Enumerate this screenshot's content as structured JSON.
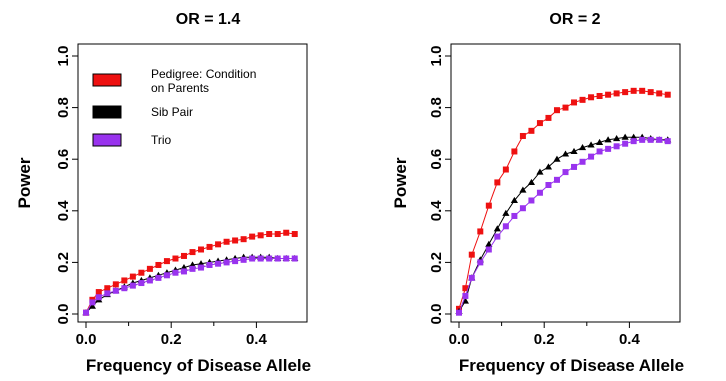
{
  "chart_data": [
    {
      "type": "line",
      "title": "OR = 1.4",
      "xlabel": "Frequency of Disease Allele",
      "ylabel": "Power",
      "xlim": [
        0,
        0.5
      ],
      "ylim": [
        0,
        1.0
      ],
      "xticks": [
        "0.0",
        "0.2",
        "0.4"
      ],
      "yticks": [
        "0.0",
        "0.2",
        "0.4",
        "0.6",
        "0.8",
        "1.0"
      ],
      "grid": false,
      "legend": {
        "placement": "top-left",
        "entries": [
          "Pedigree: Condition on Parents",
          "Sib Pair",
          "Trio"
        ]
      },
      "series": [
        {
          "name": "Pedigree: Condition on Parents",
          "color": "#ee1111",
          "marker": "square",
          "x": [
            0.0,
            0.015,
            0.03,
            0.05,
            0.07,
            0.09,
            0.11,
            0.13,
            0.15,
            0.17,
            0.19,
            0.21,
            0.23,
            0.25,
            0.27,
            0.29,
            0.31,
            0.33,
            0.35,
            0.37,
            0.39,
            0.41,
            0.43,
            0.45,
            0.47,
            0.49
          ],
          "values": [
            0.005,
            0.055,
            0.085,
            0.1,
            0.115,
            0.13,
            0.145,
            0.16,
            0.175,
            0.19,
            0.205,
            0.215,
            0.225,
            0.24,
            0.25,
            0.26,
            0.27,
            0.28,
            0.285,
            0.29,
            0.3,
            0.305,
            0.31,
            0.31,
            0.315,
            0.31
          ]
        },
        {
          "name": "Sib Pair",
          "color": "#000000",
          "marker": "triangle",
          "x": [
            0.0,
            0.015,
            0.03,
            0.05,
            0.07,
            0.09,
            0.11,
            0.13,
            0.15,
            0.17,
            0.19,
            0.21,
            0.23,
            0.25,
            0.27,
            0.29,
            0.31,
            0.33,
            0.35,
            0.37,
            0.39,
            0.41,
            0.43,
            0.45,
            0.47,
            0.49
          ],
          "values": [
            0.005,
            0.03,
            0.055,
            0.075,
            0.09,
            0.105,
            0.12,
            0.13,
            0.14,
            0.15,
            0.16,
            0.17,
            0.18,
            0.19,
            0.195,
            0.2,
            0.205,
            0.21,
            0.215,
            0.22,
            0.22,
            0.22,
            0.22,
            0.215,
            0.215,
            0.215
          ]
        },
        {
          "name": "Trio",
          "color": "#9933ee",
          "marker": "square",
          "x": [
            0.0,
            0.015,
            0.03,
            0.05,
            0.07,
            0.09,
            0.11,
            0.13,
            0.15,
            0.17,
            0.19,
            0.21,
            0.23,
            0.25,
            0.27,
            0.29,
            0.31,
            0.33,
            0.35,
            0.37,
            0.39,
            0.41,
            0.43,
            0.45,
            0.47,
            0.49
          ],
          "values": [
            0.005,
            0.045,
            0.065,
            0.08,
            0.09,
            0.1,
            0.11,
            0.12,
            0.13,
            0.14,
            0.15,
            0.16,
            0.165,
            0.175,
            0.18,
            0.19,
            0.195,
            0.2,
            0.205,
            0.21,
            0.215,
            0.215,
            0.215,
            0.215,
            0.215,
            0.215
          ]
        }
      ]
    },
    {
      "type": "line",
      "title": "OR = 2",
      "xlabel": "Frequency of Disease Allele",
      "ylabel": "Power",
      "xlim": [
        0,
        0.5
      ],
      "ylim": [
        0,
        1.0
      ],
      "xticks": [
        "0.0",
        "0.2",
        "0.4"
      ],
      "yticks": [
        "0.0",
        "0.2",
        "0.4",
        "0.6",
        "0.8",
        "1.0"
      ],
      "grid": false,
      "series": [
        {
          "name": "Pedigree: Condition on Parents",
          "color": "#ee1111",
          "marker": "square",
          "x": [
            0.0,
            0.015,
            0.03,
            0.05,
            0.07,
            0.09,
            0.11,
            0.13,
            0.15,
            0.17,
            0.19,
            0.21,
            0.23,
            0.25,
            0.27,
            0.29,
            0.31,
            0.33,
            0.35,
            0.37,
            0.39,
            0.41,
            0.43,
            0.45,
            0.47,
            0.49
          ],
          "values": [
            0.02,
            0.1,
            0.23,
            0.32,
            0.42,
            0.51,
            0.56,
            0.63,
            0.69,
            0.71,
            0.74,
            0.76,
            0.79,
            0.8,
            0.82,
            0.83,
            0.84,
            0.845,
            0.85,
            0.855,
            0.86,
            0.865,
            0.865,
            0.86,
            0.855,
            0.85
          ]
        },
        {
          "name": "Sib Pair",
          "color": "#000000",
          "marker": "triangle",
          "x": [
            0.0,
            0.015,
            0.03,
            0.05,
            0.07,
            0.09,
            0.11,
            0.13,
            0.15,
            0.17,
            0.19,
            0.21,
            0.23,
            0.25,
            0.27,
            0.29,
            0.31,
            0.33,
            0.35,
            0.37,
            0.39,
            0.41,
            0.43,
            0.45,
            0.47,
            0.49
          ],
          "values": [
            0.01,
            0.05,
            0.14,
            0.21,
            0.27,
            0.33,
            0.39,
            0.44,
            0.48,
            0.51,
            0.55,
            0.57,
            0.6,
            0.62,
            0.63,
            0.645,
            0.655,
            0.665,
            0.675,
            0.68,
            0.685,
            0.685,
            0.685,
            0.68,
            0.675,
            0.675
          ]
        },
        {
          "name": "Trio",
          "color": "#9933ee",
          "marker": "square",
          "x": [
            0.0,
            0.015,
            0.03,
            0.05,
            0.07,
            0.09,
            0.11,
            0.13,
            0.15,
            0.17,
            0.19,
            0.21,
            0.23,
            0.25,
            0.27,
            0.29,
            0.31,
            0.33,
            0.35,
            0.37,
            0.39,
            0.41,
            0.43,
            0.45,
            0.47,
            0.49
          ],
          "values": [
            0.005,
            0.07,
            0.14,
            0.2,
            0.25,
            0.3,
            0.34,
            0.38,
            0.41,
            0.44,
            0.47,
            0.5,
            0.52,
            0.55,
            0.57,
            0.59,
            0.61,
            0.63,
            0.64,
            0.65,
            0.66,
            0.67,
            0.675,
            0.675,
            0.675,
            0.67
          ]
        }
      ]
    }
  ]
}
